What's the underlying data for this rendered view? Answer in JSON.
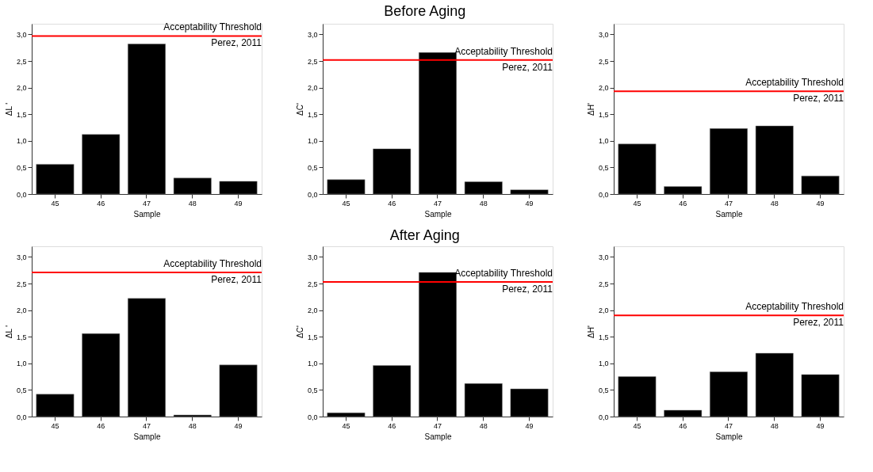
{
  "chart_data": [
    {
      "type": "bar",
      "categories": [
        "45",
        "46",
        "47",
        "48",
        "49"
      ],
      "values": [
        0.56,
        1.12,
        2.82,
        0.3,
        0.24
      ],
      "color": "#000000",
      "xlabel": "Sample",
      "ylabel": "ΔL '",
      "ylim": [
        0,
        3.2
      ],
      "yticks": [
        {
          "value": 0,
          "label": "0,0"
        },
        {
          "value": 0.5,
          "label": "0,5"
        },
        {
          "value": 1,
          "label": "1,0"
        },
        {
          "value": 1.5,
          "label": "1,5"
        },
        {
          "value": 2,
          "label": "2,0"
        },
        {
          "value": 2.5,
          "label": "2,5"
        },
        {
          "value": 3,
          "label": "3,0"
        }
      ],
      "grid": false,
      "legend": false,
      "ref_lines": [
        {
          "axis": "y",
          "value": 2.97,
          "label": "Acceptability Threshold",
          "color": "#ff0000"
        }
      ],
      "annotations": [
        "Perez, 2011"
      ]
    },
    {
      "type": "bar",
      "title": "Before Aging",
      "categories": [
        "45",
        "46",
        "47",
        "48",
        "49"
      ],
      "values": [
        0.27,
        0.85,
        2.66,
        0.23,
        0.08
      ],
      "color": "#000000",
      "xlabel": "Sample",
      "ylabel": "ΔC'",
      "ylim": [
        0,
        3.2
      ],
      "yticks": [
        {
          "value": 0,
          "label": "0,0"
        },
        {
          "value": 0.5,
          "label": "0,5"
        },
        {
          "value": 1,
          "label": "1,0"
        },
        {
          "value": 1.5,
          "label": "1,5"
        },
        {
          "value": 2,
          "label": "2,0"
        },
        {
          "value": 2.5,
          "label": "2,5"
        },
        {
          "value": 3,
          "label": "3,0"
        }
      ],
      "grid": false,
      "legend": false,
      "ref_lines": [
        {
          "axis": "y",
          "value": 2.52,
          "label": "Acceptability Threshold",
          "color": "#ff0000"
        }
      ],
      "annotations": [
        "Perez, 2011"
      ]
    },
    {
      "type": "bar",
      "categories": [
        "45",
        "46",
        "47",
        "48",
        "49"
      ],
      "values": [
        0.94,
        0.14,
        1.23,
        1.28,
        0.34
      ],
      "color": "#000000",
      "xlabel": "Sample",
      "ylabel": "ΔH'",
      "ylim": [
        0,
        3.2
      ],
      "yticks": [
        {
          "value": 0,
          "label": "0,0"
        },
        {
          "value": 0.5,
          "label": "0,5"
        },
        {
          "value": 1,
          "label": "1,0"
        },
        {
          "value": 1.5,
          "label": "1,5"
        },
        {
          "value": 2,
          "label": "2,0"
        },
        {
          "value": 2.5,
          "label": "2,5"
        },
        {
          "value": 3,
          "label": "3,0"
        }
      ],
      "grid": false,
      "legend": false,
      "ref_lines": [
        {
          "axis": "y",
          "value": 1.93,
          "label": "Acceptability Threshold",
          "color": "#ff0000"
        }
      ],
      "annotations": [
        "Perez, 2011"
      ]
    },
    {
      "type": "bar",
      "categories": [
        "45",
        "46",
        "47",
        "48",
        "49"
      ],
      "values": [
        0.42,
        1.56,
        2.22,
        0.03,
        0.97
      ],
      "color": "#000000",
      "xlabel": "Sample",
      "ylabel": "ΔL '",
      "ylim": [
        0,
        3.2
      ],
      "yticks": [
        {
          "value": 0,
          "label": "0,0"
        },
        {
          "value": 0.5,
          "label": "0,5"
        },
        {
          "value": 1,
          "label": "1,0"
        },
        {
          "value": 1.5,
          "label": "1,5"
        },
        {
          "value": 2,
          "label": "2,0"
        },
        {
          "value": 2.5,
          "label": "2,5"
        },
        {
          "value": 3,
          "label": "3,0"
        }
      ],
      "grid": false,
      "legend": false,
      "ref_lines": [
        {
          "axis": "y",
          "value": 2.71,
          "label": "Acceptability Threshold",
          "color": "#ff0000"
        }
      ],
      "annotations": [
        "Perez, 2011"
      ]
    },
    {
      "type": "bar",
      "title": "After Aging",
      "categories": [
        "45",
        "46",
        "47",
        "48",
        "49"
      ],
      "values": [
        0.07,
        0.96,
        2.71,
        0.62,
        0.52
      ],
      "color": "#000000",
      "xlabel": "Sample",
      "ylabel": "ΔC'",
      "ylim": [
        0,
        3.2
      ],
      "yticks": [
        {
          "value": 0,
          "label": "0,0"
        },
        {
          "value": 0.5,
          "label": "0,5"
        },
        {
          "value": 1,
          "label": "1,0"
        },
        {
          "value": 1.5,
          "label": "1,5"
        },
        {
          "value": 2,
          "label": "2,0"
        },
        {
          "value": 2.5,
          "label": "2,5"
        },
        {
          "value": 3,
          "label": "3,0"
        }
      ],
      "grid": false,
      "legend": false,
      "ref_lines": [
        {
          "axis": "y",
          "value": 2.53,
          "label": "Acceptability Threshold",
          "color": "#ff0000"
        }
      ],
      "annotations": [
        "Perez, 2011"
      ]
    },
    {
      "type": "bar",
      "categories": [
        "45",
        "46",
        "47",
        "48",
        "49"
      ],
      "values": [
        0.75,
        0.12,
        0.84,
        1.19,
        0.79
      ],
      "color": "#000000",
      "xlabel": "Sample",
      "ylabel": "ΔH'",
      "ylim": [
        0,
        3.2
      ],
      "yticks": [
        {
          "value": 0,
          "label": "0,0"
        },
        {
          "value": 0.5,
          "label": "0,5"
        },
        {
          "value": 1,
          "label": "1,0"
        },
        {
          "value": 1.5,
          "label": "1,5"
        },
        {
          "value": 2,
          "label": "2,0"
        },
        {
          "value": 2.5,
          "label": "2,5"
        },
        {
          "value": 3,
          "label": "3,0"
        }
      ],
      "grid": false,
      "legend": false,
      "ref_lines": [
        {
          "axis": "y",
          "value": 1.9,
          "label": "Acceptability Threshold",
          "color": "#ff0000"
        }
      ],
      "annotations": [
        "Perez, 2011"
      ]
    }
  ]
}
